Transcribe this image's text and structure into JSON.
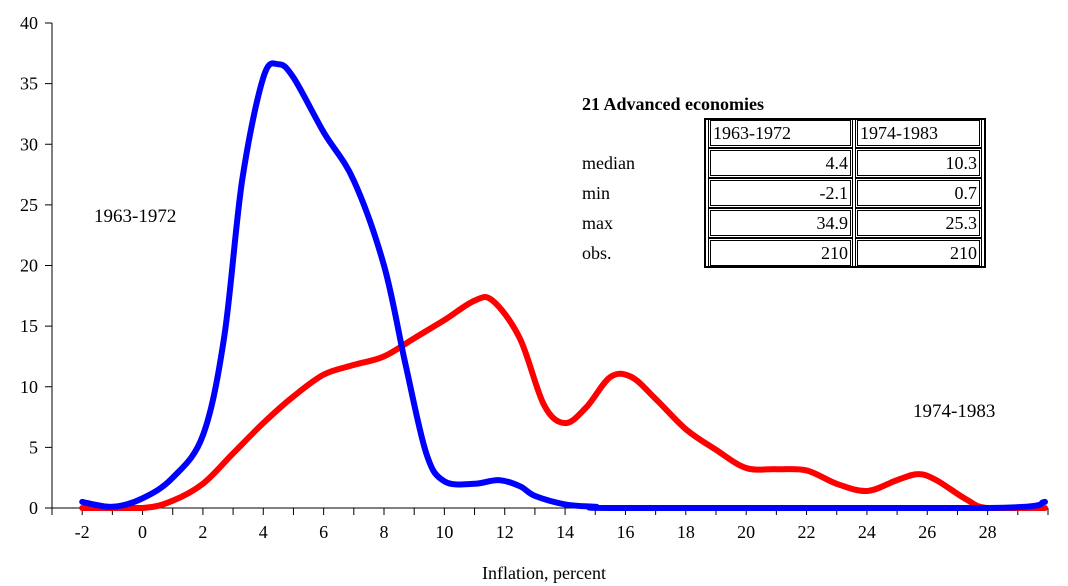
{
  "chart_data": {
    "type": "line",
    "title": "",
    "xlabel": "Inflation, percent",
    "ylabel": "",
    "xlim": [
      -3,
      30
    ],
    "ylim": [
      0,
      40
    ],
    "x_ticks": [
      -2,
      0,
      2,
      4,
      6,
      8,
      10,
      12,
      14,
      16,
      18,
      20,
      22,
      24,
      26,
      28
    ],
    "y_ticks": [
      0,
      5,
      10,
      15,
      20,
      25,
      30,
      35,
      40
    ],
    "grid": false,
    "series": [
      {
        "name": "1963-1972",
        "color": "#0000ff",
        "points": [
          [
            -2,
            0.5
          ],
          [
            -1,
            0.1
          ],
          [
            0,
            0.8
          ],
          [
            1,
            2.5
          ],
          [
            2,
            6.0
          ],
          [
            2.7,
            14
          ],
          [
            3.3,
            27
          ],
          [
            4,
            35.5
          ],
          [
            4.5,
            36.6
          ],
          [
            5,
            35.5
          ],
          [
            6,
            31
          ],
          [
            7,
            27
          ],
          [
            8,
            20
          ],
          [
            8.7,
            12
          ],
          [
            9.4,
            4.5
          ],
          [
            10,
            2.2
          ],
          [
            11,
            2.0
          ],
          [
            11.8,
            2.3
          ],
          [
            12.5,
            1.8
          ],
          [
            13,
            1.0
          ],
          [
            14,
            0.3
          ],
          [
            15,
            0.1
          ],
          [
            16,
            0.0
          ],
          [
            28,
            0.0
          ],
          [
            29.9,
            0.5
          ]
        ]
      },
      {
        "name": "1974-1983",
        "color": "#ff0000",
        "points": [
          [
            -2,
            0.0
          ],
          [
            0,
            0.0
          ],
          [
            1,
            0.6
          ],
          [
            2,
            2.0
          ],
          [
            3,
            4.5
          ],
          [
            4,
            7.0
          ],
          [
            5,
            9.2
          ],
          [
            6,
            11.0
          ],
          [
            7,
            11.8
          ],
          [
            8,
            12.5
          ],
          [
            9,
            14.0
          ],
          [
            10,
            15.5
          ],
          [
            11,
            17.1
          ],
          [
            11.6,
            17.1
          ],
          [
            12.5,
            14
          ],
          [
            13.3,
            8.5
          ],
          [
            14,
            7.0
          ],
          [
            14.7,
            8.3
          ],
          [
            15.5,
            10.8
          ],
          [
            16.2,
            10.8
          ],
          [
            17,
            9
          ],
          [
            18,
            6.5
          ],
          [
            19,
            4.8
          ],
          [
            20,
            3.3
          ],
          [
            21,
            3.2
          ],
          [
            22,
            3.1
          ],
          [
            23,
            2.0
          ],
          [
            24,
            1.4
          ],
          [
            25,
            2.3
          ],
          [
            25.7,
            2.8
          ],
          [
            26.3,
            2.3
          ],
          [
            27.3,
            0.7
          ],
          [
            28,
            0.0
          ],
          [
            29.9,
            0.0
          ]
        ]
      }
    ],
    "annotations": [
      {
        "text": "1963-1972"
      },
      {
        "text": "1974-1983"
      }
    ]
  },
  "table": {
    "title": "21 Advanced economies",
    "columns": [
      "1963-1972",
      "1974-1983"
    ],
    "rows": [
      {
        "label": "median",
        "values": [
          "4.4",
          "10.3"
        ]
      },
      {
        "label": "min",
        "values": [
          "-2.1",
          "0.7"
        ]
      },
      {
        "label": "max",
        "values": [
          "34.9",
          "25.3"
        ]
      },
      {
        "label": "obs.",
        "values": [
          "210",
          "210"
        ]
      }
    ]
  }
}
